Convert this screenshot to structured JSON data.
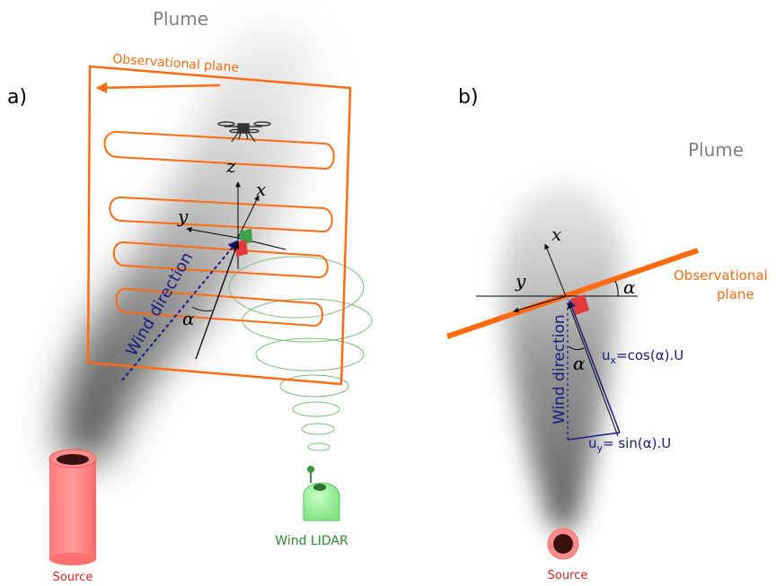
{
  "panel_a": {
    "label": "a)",
    "plume_label": "Plume",
    "plane_label": "Observational plane",
    "axis_z": "z",
    "axis_x": "x",
    "axis_y": "y",
    "wind_label": "Wind direction",
    "alpha": "α",
    "source_label": "Source",
    "lidar_label": "Wind LIDAR"
  },
  "panel_b": {
    "label": "b)",
    "plume_label": "Plume",
    "axis_x": "x",
    "axis_y": "y",
    "alpha_top": "α",
    "alpha_mid": "α",
    "plane_label_line1": "Observational",
    "plane_label_line2": "plane",
    "wind_label": "Wind direction",
    "ux_u": "u",
    "ux_sub": "x",
    "ux_rest": "=cos(α).U",
    "uy_u": "u",
    "uy_sub": "y",
    "uy_rest": "= sin(α).U",
    "source_label": "Source"
  },
  "colors": {
    "orange": "#ff6a13",
    "navy": "#1a1a80",
    "lidar_green": "#2e8b2e",
    "source_red": "#e8201e",
    "plume_grey": "#8a8a8a"
  }
}
